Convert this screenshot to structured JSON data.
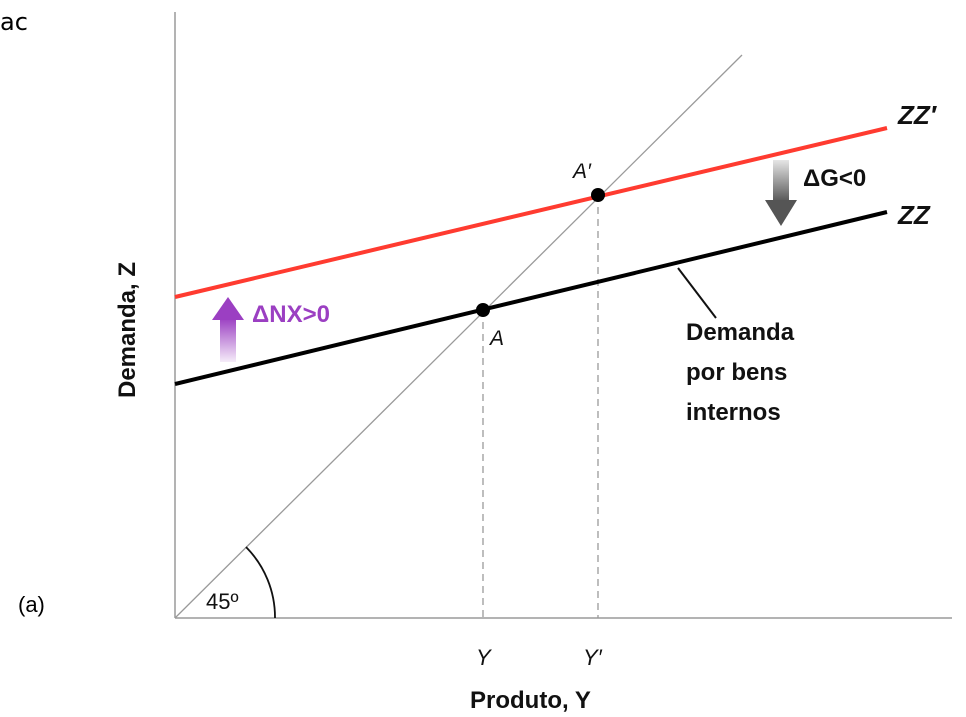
{
  "corner_fragment": "ac",
  "panel_label": "(a)",
  "y_axis_label": "Demanda, Z",
  "x_axis_label": "Produto, Y",
  "angle_label": "45º",
  "curve_zz": "ZZ",
  "curve_zz_prime": "ZZ′",
  "point_a": "A",
  "point_a_prime": "A′",
  "tick_y": "Y",
  "tick_y_prime": "Y′",
  "delta_nx": "ΔNX>0",
  "delta_g": "ΔG<0",
  "annotation": [
    "Demanda",
    "por bens",
    "internos"
  ],
  "colors": {
    "zz_prime": "#ff3b30",
    "zz": "#000000",
    "delta_nx_arrow": "#9b3fc2",
    "delta_g_arrow": "#555555",
    "guide_line": "#9a9a9a"
  }
}
